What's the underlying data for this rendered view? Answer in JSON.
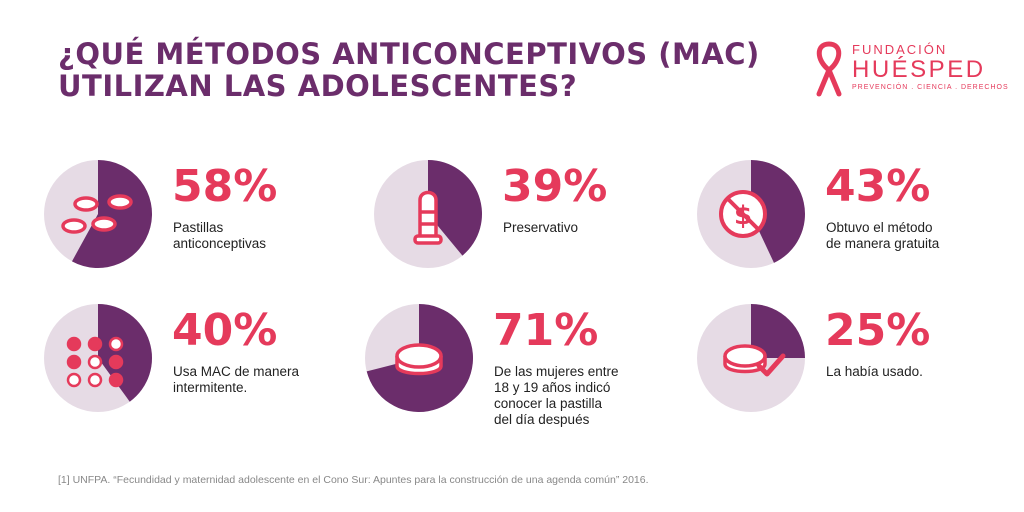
{
  "title": {
    "line1": "¿QUÉ MÉTODOS ANTICONCEPTIVOS (MAC)",
    "line2": "UTILIZAN LAS ADOLESCENTES?"
  },
  "logo": {
    "line1": "FUNDACIÓN",
    "line2": "HUÉSPED",
    "line3": "PREVENCIÓN . CIENCIA . DERECHOS"
  },
  "colors": {
    "title": "#6b2d6b",
    "accent": "#e53a5b",
    "pie_fill": "#6b2d6b",
    "pie_bg": "#e6dbe5",
    "text": "#222222"
  },
  "chart_data": [
    {
      "type": "pie",
      "value": 58,
      "percent_label": "58%",
      "label": "Pastillas\nanticonceptivas",
      "icon": "pills-icon"
    },
    {
      "type": "pie",
      "value": 39,
      "percent_label": "39%",
      "label": "Preservativo",
      "icon": "condom-icon"
    },
    {
      "type": "pie",
      "value": 43,
      "percent_label": "43%",
      "label": "Obtuvo el método\nde manera gratuita",
      "icon": "no-money-icon"
    },
    {
      "type": "pie",
      "value": 40,
      "percent_label": "40%",
      "label": "Usa MAC de manera\nintermitente.",
      "icon": "pill-pack-icon"
    },
    {
      "type": "pie",
      "value": 71,
      "percent_label": "71%",
      "label": "De las mujeres entre\n18 y 19 años indicó\nconocer la pastilla\ndel día después",
      "icon": "single-pill-icon"
    },
    {
      "type": "pie",
      "value": 25,
      "percent_label": "25%",
      "label": "La había usado.",
      "icon": "pill-check-icon"
    }
  ],
  "footnote": "[1] UNFPA. “Fecundidad y maternidad adolescente en el Cono Sur: Apuntes para la construcción de una agenda común” 2016."
}
